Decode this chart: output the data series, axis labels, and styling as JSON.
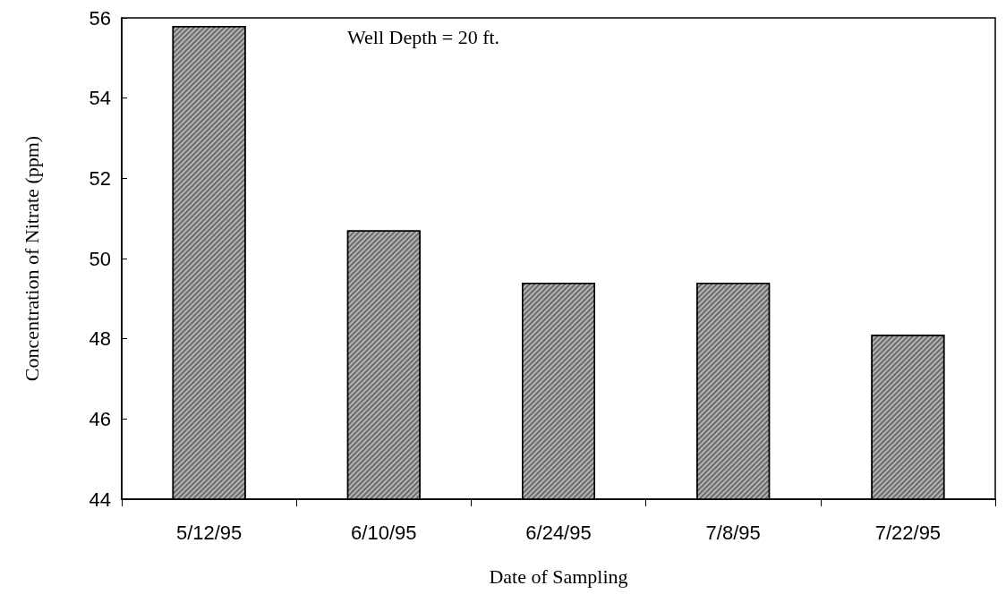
{
  "chart_data": {
    "type": "bar",
    "xlabel": "Date of Sampling",
    "ylabel": "Concentration of Nitrate (ppm)",
    "categories": [
      "5/12/95",
      "6/10/95",
      "6/24/95",
      "7/8/95",
      "7/22/95"
    ],
    "values": [
      55.8,
      50.7,
      49.4,
      49.4,
      48.1
    ],
    "color": "#6a6a6a",
    "ylim": [
      44,
      56
    ],
    "yticks": [
      44,
      46,
      48,
      50,
      52,
      54,
      56
    ],
    "grid": false,
    "annotations": [
      "Well Depth = 20 ft."
    ]
  }
}
